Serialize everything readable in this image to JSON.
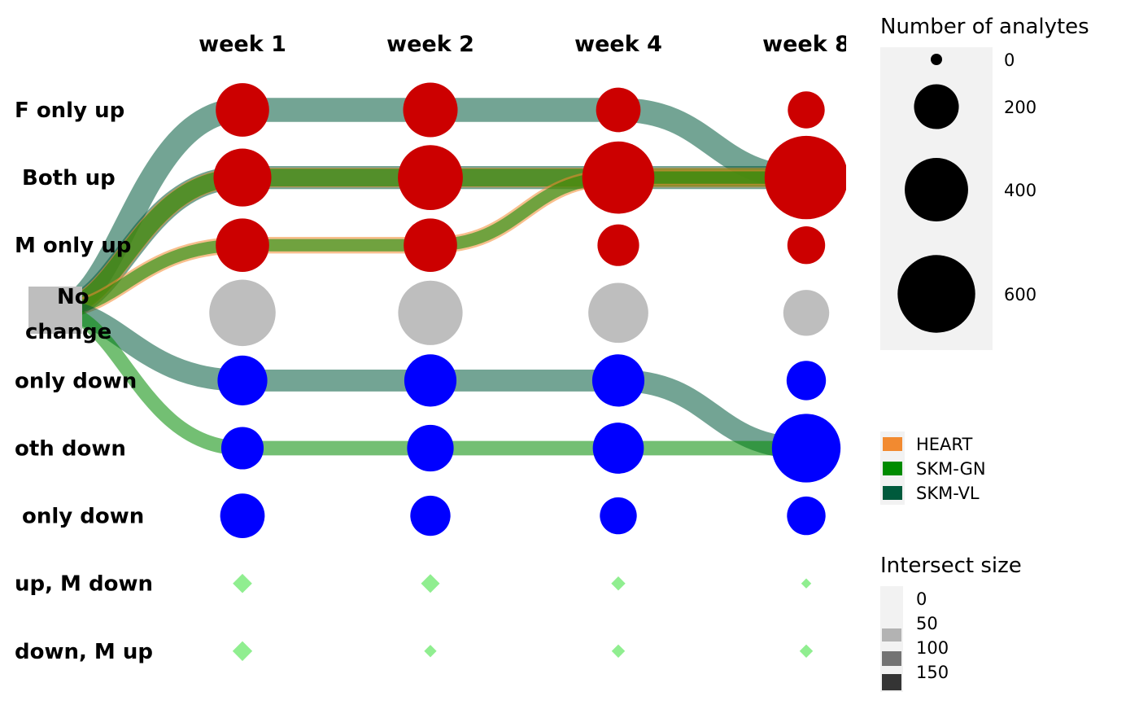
{
  "chart_data": {
    "type": "alluvial-dot",
    "columns": [
      "week 1",
      "week 2",
      "week 4",
      "week 8"
    ],
    "rows": [
      "F only up",
      "Both up",
      "M only up",
      "No change",
      "F only down",
      "Both down",
      "M only down",
      "F up, M down",
      "F down, M up"
    ],
    "row_labels_visible": [
      "F only up",
      "Both up",
      "M only up",
      "No\nchange",
      "only down",
      "oth down",
      "only down",
      "up, M down",
      "down, M up"
    ],
    "node_counts": [
      [
        230,
        240,
        160,
        110
      ],
      [
        270,
        340,
        420,
        560
      ],
      [
        230,
        230,
        140,
        115
      ],
      [
        355,
        335,
        290,
        170
      ],
      [
        200,
        220,
        220,
        125
      ],
      [
        145,
        175,
        210,
        380
      ],
      [
        160,
        130,
        110,
        120
      ],
      [
        14,
        13,
        6,
        2
      ],
      [
        15,
        4,
        5,
        5
      ]
    ],
    "node_colors": {
      "up": "#cc0000",
      "change_none": "#bebebe",
      "down": "#0000ff",
      "discordant": "#90ee90"
    },
    "tissues": [
      {
        "name": "HEART",
        "color": "#f28a30"
      },
      {
        "name": "SKM-GN",
        "color": "#008b00"
      },
      {
        "name": "SKM-VL",
        "color": "#005a3c"
      }
    ],
    "flows": [
      {
        "tissue": "SKM-VL",
        "path": [
          "No change",
          "F only up",
          "F only up",
          "F only up",
          "Both up"
        ],
        "size": 150
      },
      {
        "tissue": "SKM-VL",
        "path": [
          "No change",
          "Both up",
          "Both up",
          "Both up",
          "Both up"
        ],
        "size": 140
      },
      {
        "tissue": "HEART",
        "path": [
          "No change",
          "Both up",
          "Both up",
          "Both up",
          "Both up"
        ],
        "size": 110
      },
      {
        "tissue": "SKM-GN",
        "path": [
          "No change",
          "Both up",
          "Both up",
          "Both up",
          "Both up"
        ],
        "size": 90
      },
      {
        "tissue": "HEART",
        "path": [
          "No change",
          "M only up",
          "M only up",
          "Both up",
          "Both up"
        ],
        "size": 80
      },
      {
        "tissue": "SKM-GN",
        "path": [
          "No change",
          "M only up",
          "M only up",
          "Both up",
          "Both up"
        ],
        "size": 40
      },
      {
        "tissue": "SKM-VL",
        "path": [
          "No change",
          "F only down",
          "F only down",
          "F only down",
          "Both down"
        ],
        "size": 130
      },
      {
        "tissue": "SKM-GN",
        "path": [
          "No change",
          "Both down",
          "Both down",
          "Both down",
          "Both down"
        ],
        "size": 60
      }
    ],
    "legend_size": {
      "title": "Number of analytes",
      "breaks": [
        "0",
        "200",
        "400",
        "600"
      ],
      "values": [
        0,
        200,
        400,
        600
      ]
    },
    "legend_tissue": {
      "entries": [
        "HEART",
        "SKM-GN",
        "SKM-VL"
      ]
    },
    "legend_intersect": {
      "title": "Intersect size",
      "breaks": [
        "0",
        "50",
        "100",
        "150"
      ],
      "values": [
        0,
        50,
        100,
        150
      ]
    }
  }
}
